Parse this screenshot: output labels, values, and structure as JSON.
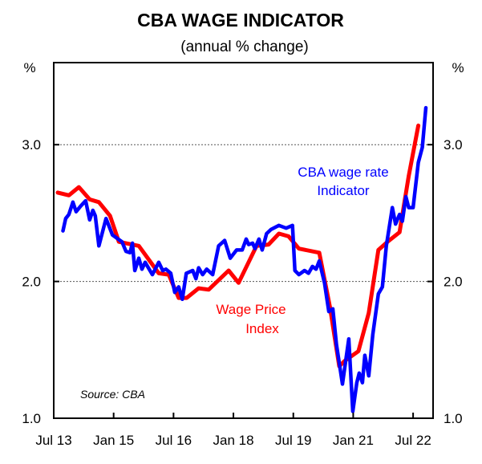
{
  "chart_data": {
    "type": "line",
    "title": "CBA WAGE INDICATOR",
    "subtitle": "(annual % change)",
    "ylabel_left": "%",
    "ylabel_right": "%",
    "xlim": [
      2013.5,
      2023.0
    ],
    "ylim": [
      1.0,
      3.6
    ],
    "grid": "horizontal dotted at 2.0 and 3.0",
    "x_ticks": [
      {
        "value": 2013.5,
        "label": "Jul 13"
      },
      {
        "value": 2015.0,
        "label": "Jan 15"
      },
      {
        "value": 2016.5,
        "label": "Jul 16"
      },
      {
        "value": 2018.0,
        "label": "Jan 18"
      },
      {
        "value": 2019.5,
        "label": "Jul 19"
      },
      {
        "value": 2021.0,
        "label": "Jan 21"
      },
      {
        "value": 2022.5,
        "label": "Jul 22"
      }
    ],
    "y_ticks": [
      {
        "value": 1.0,
        "label": "1.0"
      },
      {
        "value": 2.0,
        "label": "2.0"
      },
      {
        "value": 3.0,
        "label": "3.0"
      }
    ],
    "source": "Source: CBA",
    "series": [
      {
        "name": "Wage Price Index",
        "label_lines": [
          "Wage Price",
          "Index"
        ],
        "color": "#ff0000",
        "x": [
          2013.6,
          2013.88,
          2014.13,
          2014.4,
          2014.63,
          2014.91,
          2015.13,
          2015.63,
          2016.13,
          2016.38,
          2016.63,
          2016.83,
          2017.13,
          2017.38,
          2017.88,
          2018.13,
          2018.58,
          2018.88,
          2019.14,
          2019.38,
          2019.64,
          2020.15,
          2020.42,
          2020.65,
          2020.79,
          2021.13,
          2021.39,
          2021.63,
          2021.86,
          2022.16,
          2022.39,
          2022.63
        ],
        "y": [
          2.65,
          2.63,
          2.69,
          2.6,
          2.58,
          2.48,
          2.29,
          2.26,
          2.06,
          2.05,
          1.88,
          1.88,
          1.95,
          1.94,
          2.08,
          1.99,
          2.26,
          2.27,
          2.35,
          2.33,
          2.24,
          2.21,
          1.81,
          1.38,
          1.42,
          1.49,
          1.77,
          2.23,
          2.29,
          2.36,
          2.77,
          3.14
        ]
      },
      {
        "name": "CBA wage rate Indicator",
        "label_lines": [
          "CBA wage rate",
          "Indicator"
        ],
        "color": "#0000ff",
        "x": [
          2013.73,
          2013.8,
          2013.88,
          2013.98,
          2014.06,
          2014.17,
          2014.3,
          2014.4,
          2014.48,
          2014.54,
          2014.63,
          2014.81,
          2014.97,
          2015.21,
          2015.31,
          2015.41,
          2015.47,
          2015.53,
          2015.63,
          2015.71,
          2015.79,
          2015.97,
          2016.13,
          2016.23,
          2016.31,
          2016.43,
          2016.53,
          2016.63,
          2016.72,
          2016.82,
          2016.98,
          2017.06,
          2017.13,
          2017.23,
          2017.33,
          2017.48,
          2017.63,
          2017.78,
          2017.92,
          2018.08,
          2018.22,
          2018.32,
          2018.38,
          2018.48,
          2018.54,
          2018.64,
          2018.72,
          2018.83,
          2018.94,
          2019.14,
          2019.32,
          2019.48,
          2019.54,
          2019.64,
          2019.78,
          2019.88,
          2019.98,
          2020.07,
          2020.15,
          2020.28,
          2020.39,
          2020.49,
          2020.58,
          2020.73,
          2020.89,
          2020.99,
          2021.09,
          2021.15,
          2021.23,
          2021.29,
          2021.39,
          2021.49,
          2021.63,
          2021.73,
          2021.83,
          2021.98,
          2022.06,
          2022.16,
          2022.23,
          2022.32,
          2022.39,
          2022.5,
          2022.63,
          2022.73,
          2022.82
        ],
        "y": [
          2.37,
          2.46,
          2.49,
          2.58,
          2.51,
          2.55,
          2.59,
          2.45,
          2.52,
          2.48,
          2.26,
          2.46,
          2.34,
          2.29,
          2.22,
          2.21,
          2.28,
          2.08,
          2.17,
          2.09,
          2.14,
          2.05,
          2.14,
          2.08,
          2.09,
          2.06,
          1.92,
          1.96,
          1.87,
          2.06,
          2.08,
          2.02,
          2.1,
          2.05,
          2.09,
          2.05,
          2.26,
          2.3,
          2.17,
          2.23,
          2.23,
          2.31,
          2.27,
          2.28,
          2.24,
          2.31,
          2.23,
          2.35,
          2.38,
          2.41,
          2.39,
          2.41,
          2.08,
          2.05,
          2.08,
          2.06,
          2.11,
          2.09,
          2.15,
          1.99,
          1.78,
          1.8,
          1.54,
          1.25,
          1.58,
          1.05,
          1.26,
          1.33,
          1.26,
          1.46,
          1.31,
          1.61,
          1.91,
          1.96,
          2.26,
          2.54,
          2.42,
          2.49,
          2.44,
          2.62,
          2.54,
          2.54,
          2.87,
          2.98,
          3.27
        ]
      }
    ]
  }
}
